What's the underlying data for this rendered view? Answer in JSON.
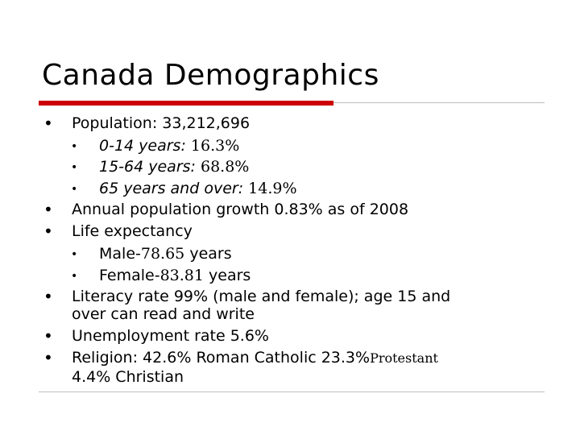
{
  "slide": {
    "title": "Canada Demographics",
    "bullet_main": "•",
    "bullet_sub": "•",
    "items": [
      {
        "label": "Population: ",
        "value": "33,212,696"
      },
      {
        "label": "0-14 years: ",
        "value": "16.3%"
      },
      {
        "label": "15-64 years: ",
        "value": "68.8%"
      },
      {
        "label": "65 years and over: ",
        "value": "14.9%"
      },
      {
        "text": "Annual population growth 0.83% as of 2008"
      },
      {
        "text": "Life expectancy"
      },
      {
        "label": "Male-",
        "value": "78.65",
        "unit": " years"
      },
      {
        "label": "Female-",
        "value": "83.81",
        "unit": " years"
      },
      {
        "line1": "Literacy rate 99% (male and female); age 15 and",
        "line2": "over can read and write"
      },
      {
        "text": "Unemployment rate 5.6%"
      },
      {
        "label": "Religion: 42.6% Roman Catholic 23.3%",
        "suffix": "Protestant",
        "line2": "4.4% Christian"
      }
    ]
  },
  "colors": {
    "accent_rule": "#cc0000",
    "divider": "#bdbdbd"
  }
}
